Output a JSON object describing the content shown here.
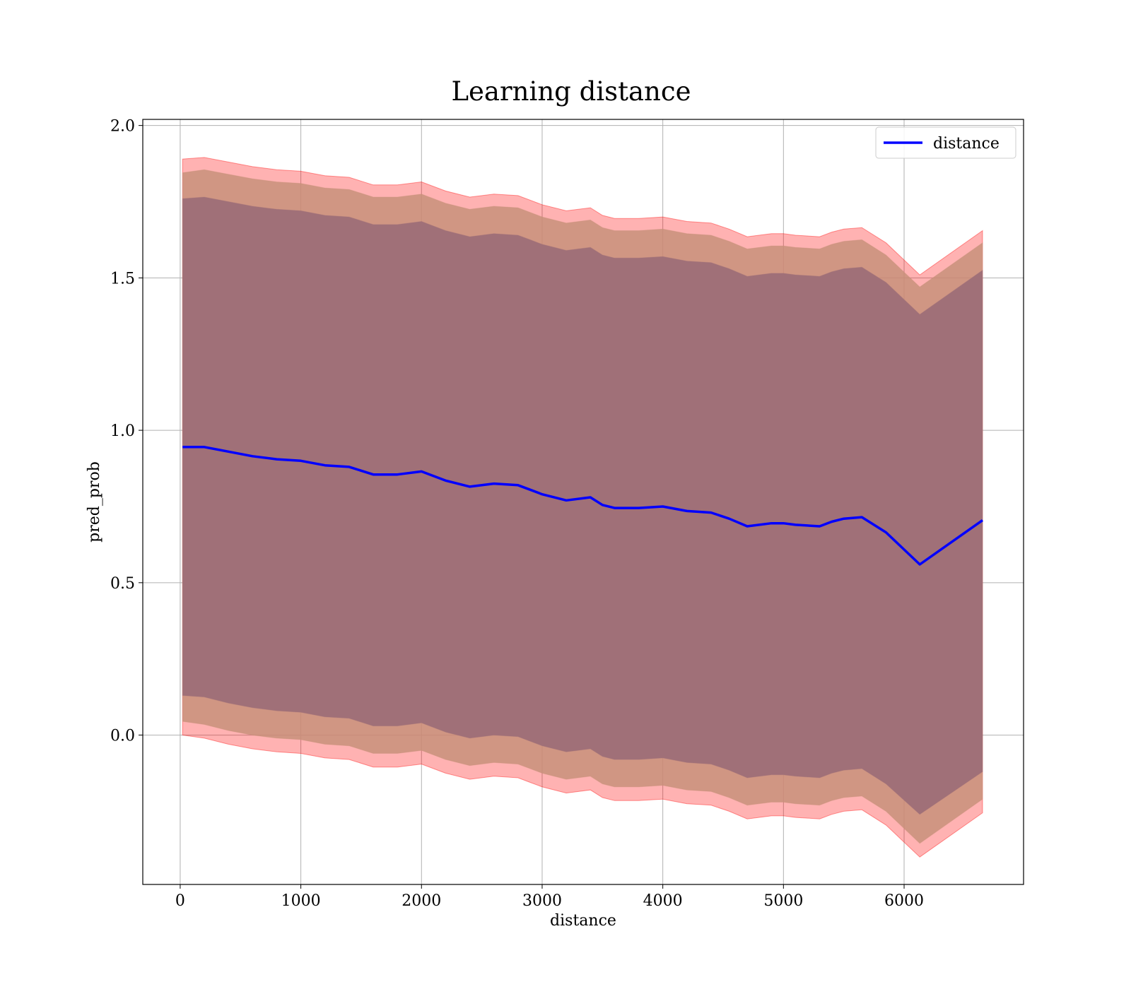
{
  "chart_data": {
    "type": "line",
    "title": "Learning distance",
    "xlabel": "distance",
    "ylabel": "pred_prob",
    "xlim": [
      -310,
      6990
    ],
    "ylim": [
      -0.49,
      2.02
    ],
    "xticks": [
      0,
      1000,
      2000,
      3000,
      4000,
      5000,
      6000
    ],
    "xtick_labels": [
      "0",
      "1000",
      "2000",
      "3000",
      "4000",
      "5000",
      "6000"
    ],
    "yticks": [
      0.0,
      0.5,
      1.0,
      1.5,
      2.0
    ],
    "ytick_labels": [
      "0.0",
      "0.5",
      "1.0",
      "1.5",
      "2.0"
    ],
    "grid": true,
    "legend": {
      "position": "top-right",
      "entries": [
        "distance"
      ]
    },
    "colors": {
      "line": "#0000ff",
      "band_outer": "#ff0000",
      "band_middle": "#c8917a",
      "band_inner": "#a07078"
    },
    "x": [
      20,
      200,
      400,
      600,
      800,
      1000,
      1200,
      1400,
      1600,
      1800,
      2000,
      2200,
      2400,
      2600,
      2800,
      2900,
      3000,
      3200,
      3400,
      3500,
      3600,
      3800,
      4000,
      4200,
      4400,
      4550,
      4700,
      4900,
      5000,
      5100,
      5300,
      5400,
      5500,
      5650,
      5850,
      6130,
      6650
    ],
    "series": [
      {
        "name": "distance",
        "values": [
          0.945,
          0.945,
          0.93,
          0.915,
          0.905,
          0.9,
          0.885,
          0.88,
          0.855,
          0.855,
          0.865,
          0.835,
          0.815,
          0.825,
          0.82,
          0.805,
          0.79,
          0.77,
          0.78,
          0.755,
          0.745,
          0.745,
          0.75,
          0.735,
          0.73,
          0.71,
          0.685,
          0.695,
          0.695,
          0.69,
          0.685,
          0.7,
          0.71,
          0.715,
          0.665,
          0.56,
          0.705
        ]
      }
    ],
    "bands": [
      {
        "lower": [
          0.0,
          -0.01,
          -0.03,
          -0.045,
          -0.055,
          -0.06,
          -0.075,
          -0.08,
          -0.105,
          -0.105,
          -0.095,
          -0.125,
          -0.145,
          -0.135,
          -0.14,
          -0.155,
          -0.17,
          -0.19,
          -0.18,
          -0.205,
          -0.215,
          -0.215,
          -0.21,
          -0.225,
          -0.23,
          -0.25,
          -0.275,
          -0.265,
          -0.265,
          -0.27,
          -0.275,
          -0.26,
          -0.25,
          -0.245,
          -0.295,
          -0.4,
          -0.255
        ],
        "upper": [
          1.89,
          1.895,
          1.88,
          1.865,
          1.855,
          1.85,
          1.835,
          1.83,
          1.805,
          1.805,
          1.815,
          1.785,
          1.765,
          1.775,
          1.77,
          1.755,
          1.74,
          1.72,
          1.73,
          1.705,
          1.695,
          1.695,
          1.7,
          1.685,
          1.68,
          1.66,
          1.635,
          1.645,
          1.645,
          1.64,
          1.635,
          1.65,
          1.66,
          1.665,
          1.615,
          1.51,
          1.655
        ]
      },
      {
        "lower": [
          0.045,
          0.035,
          0.015,
          0.0,
          -0.01,
          -0.015,
          -0.03,
          -0.035,
          -0.06,
          -0.06,
          -0.05,
          -0.08,
          -0.1,
          -0.09,
          -0.095,
          -0.11,
          -0.125,
          -0.145,
          -0.135,
          -0.16,
          -0.17,
          -0.17,
          -0.165,
          -0.18,
          -0.185,
          -0.205,
          -0.23,
          -0.22,
          -0.22,
          -0.225,
          -0.23,
          -0.215,
          -0.205,
          -0.2,
          -0.25,
          -0.355,
          -0.21
        ],
        "upper": [
          1.845,
          1.855,
          1.84,
          1.825,
          1.815,
          1.81,
          1.795,
          1.79,
          1.765,
          1.765,
          1.775,
          1.745,
          1.725,
          1.735,
          1.73,
          1.715,
          1.7,
          1.68,
          1.69,
          1.665,
          1.655,
          1.655,
          1.66,
          1.645,
          1.64,
          1.62,
          1.595,
          1.605,
          1.605,
          1.6,
          1.595,
          1.61,
          1.62,
          1.625,
          1.575,
          1.47,
          1.615
        ]
      },
      {
        "lower": [
          0.13,
          0.125,
          0.105,
          0.09,
          0.08,
          0.075,
          0.06,
          0.055,
          0.03,
          0.03,
          0.04,
          0.01,
          -0.01,
          0.0,
          -0.005,
          -0.02,
          -0.035,
          -0.055,
          -0.045,
          -0.07,
          -0.08,
          -0.08,
          -0.075,
          -0.09,
          -0.095,
          -0.115,
          -0.14,
          -0.13,
          -0.13,
          -0.135,
          -0.14,
          -0.125,
          -0.115,
          -0.11,
          -0.16,
          -0.26,
          -0.12
        ],
        "upper": [
          1.76,
          1.765,
          1.75,
          1.735,
          1.725,
          1.72,
          1.705,
          1.7,
          1.675,
          1.675,
          1.685,
          1.655,
          1.635,
          1.645,
          1.64,
          1.625,
          1.61,
          1.59,
          1.6,
          1.575,
          1.565,
          1.565,
          1.57,
          1.555,
          1.55,
          1.53,
          1.505,
          1.515,
          1.515,
          1.51,
          1.505,
          1.52,
          1.53,
          1.535,
          1.485,
          1.38,
          1.525
        ]
      }
    ]
  }
}
